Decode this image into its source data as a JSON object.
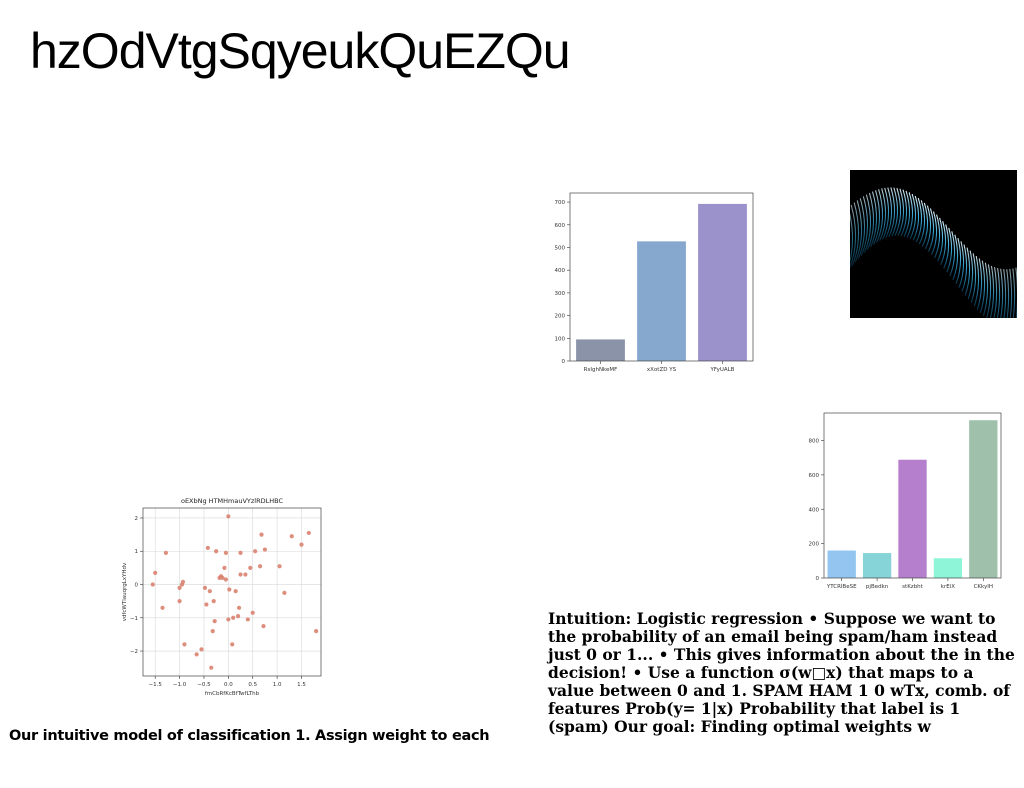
{
  "slide": {
    "title": "hzOdVtgSqyeukQuEZQu",
    "caption_left": "Our intuitive model of classification 1. Assign weight to each",
    "caption_right": "Intuition: Logistic regression • Suppose we want to the probability of an email being spam/ham instead just 0 or 1... • This gives information about the in the decision! • Use a function σ(w□x) that maps to a value between 0 and 1. SPAM HAM 1 0 wTx, comb. of features Prob(y= 1|x) Probability that label is 1 (spam) Our goal: Finding optimal weights w"
  },
  "image": {
    "icon": "abstract-blue-wave-image"
  },
  "chart_data": [
    {
      "type": "bar",
      "categories": [
        "RsIghNkeMF",
        "xXotZD YS",
        "YFyUALB"
      ],
      "values": [
        95,
        527,
        692
      ],
      "colors": [
        "#8b93a9",
        "#86a8cf",
        "#9b91cb"
      ],
      "ylim": [
        0,
        740
      ],
      "yticks": [
        0,
        100,
        200,
        300,
        400,
        500,
        600,
        700
      ],
      "grid": false
    },
    {
      "type": "bar",
      "categories": [
        "YTCRlBeSE",
        "pjBedkn",
        "stKzbht",
        "krEiX",
        "CKkyIH"
      ],
      "values": [
        160,
        145,
        688,
        115,
        918
      ],
      "colors": [
        "#93c5f0",
        "#86d3d8",
        "#b57fce",
        "#8ff5d9",
        "#9fc0aa"
      ],
      "ylim": [
        0,
        960
      ],
      "yticks": [
        0,
        200,
        400,
        600,
        800
      ],
      "grid": false
    },
    {
      "type": "scatter",
      "title": "oEXbNg HTMHmauVYzlRDLHBC",
      "xlabel": "fmCbRfKcBfTwfLThb",
      "ylabel": "vdfcWTlauqrgLxYHdv",
      "xlim": [
        -1.75,
        1.9
      ],
      "ylim": [
        -2.75,
        2.3
      ],
      "xticks": [
        -1.5,
        -1.0,
        -0.5,
        0.0,
        0.5,
        1.0,
        1.5
      ],
      "xtick_labels": [
        "−1.5",
        "−1.0",
        "−0.5",
        "0.0",
        "0.5",
        "1.0",
        "1.5"
      ],
      "yticks": [
        -2,
        -1,
        0,
        1,
        2
      ],
      "ytick_labels": [
        "−2",
        "−1",
        "0",
        "1",
        "2"
      ],
      "grid": true,
      "color": "#d9826f",
      "points": [
        [
          -1.55,
          0.0
        ],
        [
          -1.5,
          0.35
        ],
        [
          -1.35,
          -0.7
        ],
        [
          -1.28,
          0.95
        ],
        [
          -1.0,
          -0.5
        ],
        [
          -1.0,
          -0.1
        ],
        [
          -0.95,
          0.0
        ],
        [
          -0.93,
          0.08
        ],
        [
          -0.9,
          -1.8
        ],
        [
          -0.65,
          -2.1
        ],
        [
          -0.55,
          -1.95
        ],
        [
          -0.48,
          -0.1
        ],
        [
          -0.45,
          -0.6
        ],
        [
          -0.42,
          1.1
        ],
        [
          -0.38,
          -0.2
        ],
        [
          -0.35,
          -2.5
        ],
        [
          -0.32,
          -1.4
        ],
        [
          -0.3,
          -0.5
        ],
        [
          -0.28,
          -1.1
        ],
        [
          -0.25,
          1.0
        ],
        [
          -0.18,
          0.2
        ],
        [
          -0.15,
          0.25
        ],
        [
          -0.12,
          0.2
        ],
        [
          -0.08,
          0.5
        ],
        [
          -0.05,
          0.15
        ],
        [
          -0.05,
          0.95
        ],
        [
          0.0,
          -1.05
        ],
        [
          0.0,
          2.05
        ],
        [
          0.02,
          -0.15
        ],
        [
          0.08,
          -1.8
        ],
        [
          0.1,
          -1.0
        ],
        [
          0.15,
          -0.2
        ],
        [
          0.2,
          -0.95
        ],
        [
          0.22,
          -0.7
        ],
        [
          0.25,
          0.3
        ],
        [
          0.25,
          0.95
        ],
        [
          0.35,
          0.3
        ],
        [
          0.4,
          -1.05
        ],
        [
          0.45,
          0.5
        ],
        [
          0.5,
          -0.85
        ],
        [
          0.55,
          1.0
        ],
        [
          0.65,
          0.55
        ],
        [
          0.68,
          1.5
        ],
        [
          0.72,
          -1.25
        ],
        [
          0.75,
          1.05
        ],
        [
          1.05,
          0.55
        ],
        [
          1.15,
          -0.25
        ],
        [
          1.3,
          1.45
        ],
        [
          1.5,
          1.2
        ],
        [
          1.65,
          1.55
        ],
        [
          1.8,
          -1.4
        ]
      ]
    }
  ]
}
